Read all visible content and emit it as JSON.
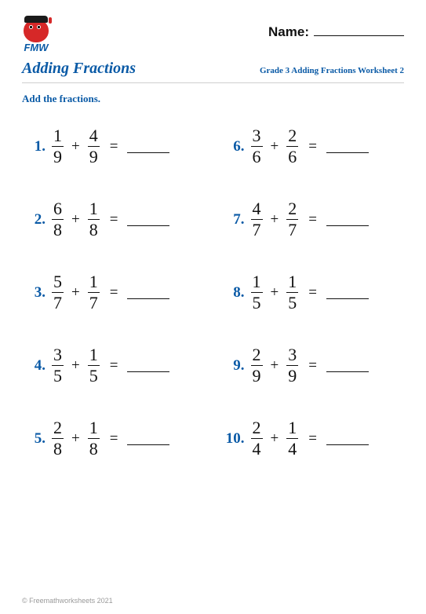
{
  "logo_text": "FMW",
  "name_label": "Name:",
  "title": "Adding Fractions",
  "subtitle": "Grade 3 Adding Fractions Worksheet 2",
  "instruction": "Add the fractions.",
  "colors": {
    "accent": "#0a5aa6",
    "text": "#111111",
    "divider": "#cfcfcf",
    "footer": "#9a9a9a",
    "logo_red": "#d62828"
  },
  "problems": [
    {
      "n": "1.",
      "a_num": "1",
      "a_den": "9",
      "b_num": "4",
      "b_den": "9"
    },
    {
      "n": "6.",
      "a_num": "3",
      "a_den": "6",
      "b_num": "2",
      "b_den": "6"
    },
    {
      "n": "2.",
      "a_num": "6",
      "a_den": "8",
      "b_num": "1",
      "b_den": "8"
    },
    {
      "n": "7.",
      "a_num": "4",
      "a_den": "7",
      "b_num": "2",
      "b_den": "7"
    },
    {
      "n": "3.",
      "a_num": "5",
      "a_den": "7",
      "b_num": "1",
      "b_den": "7"
    },
    {
      "n": "8.",
      "a_num": "1",
      "a_den": "5",
      "b_num": "1",
      "b_den": "5"
    },
    {
      "n": "4.",
      "a_num": "3",
      "a_den": "5",
      "b_num": "1",
      "b_den": "5"
    },
    {
      "n": "9.",
      "a_num": "2",
      "a_den": "9",
      "b_num": "3",
      "b_den": "9"
    },
    {
      "n": "5.",
      "a_num": "2",
      "a_den": "8",
      "b_num": "1",
      "b_den": "8"
    },
    {
      "n": "10.",
      "a_num": "2",
      "a_den": "4",
      "b_num": "1",
      "b_den": "4"
    }
  ],
  "operator": "+",
  "equals": "=",
  "footer": "© Freemathworksheets 2021"
}
